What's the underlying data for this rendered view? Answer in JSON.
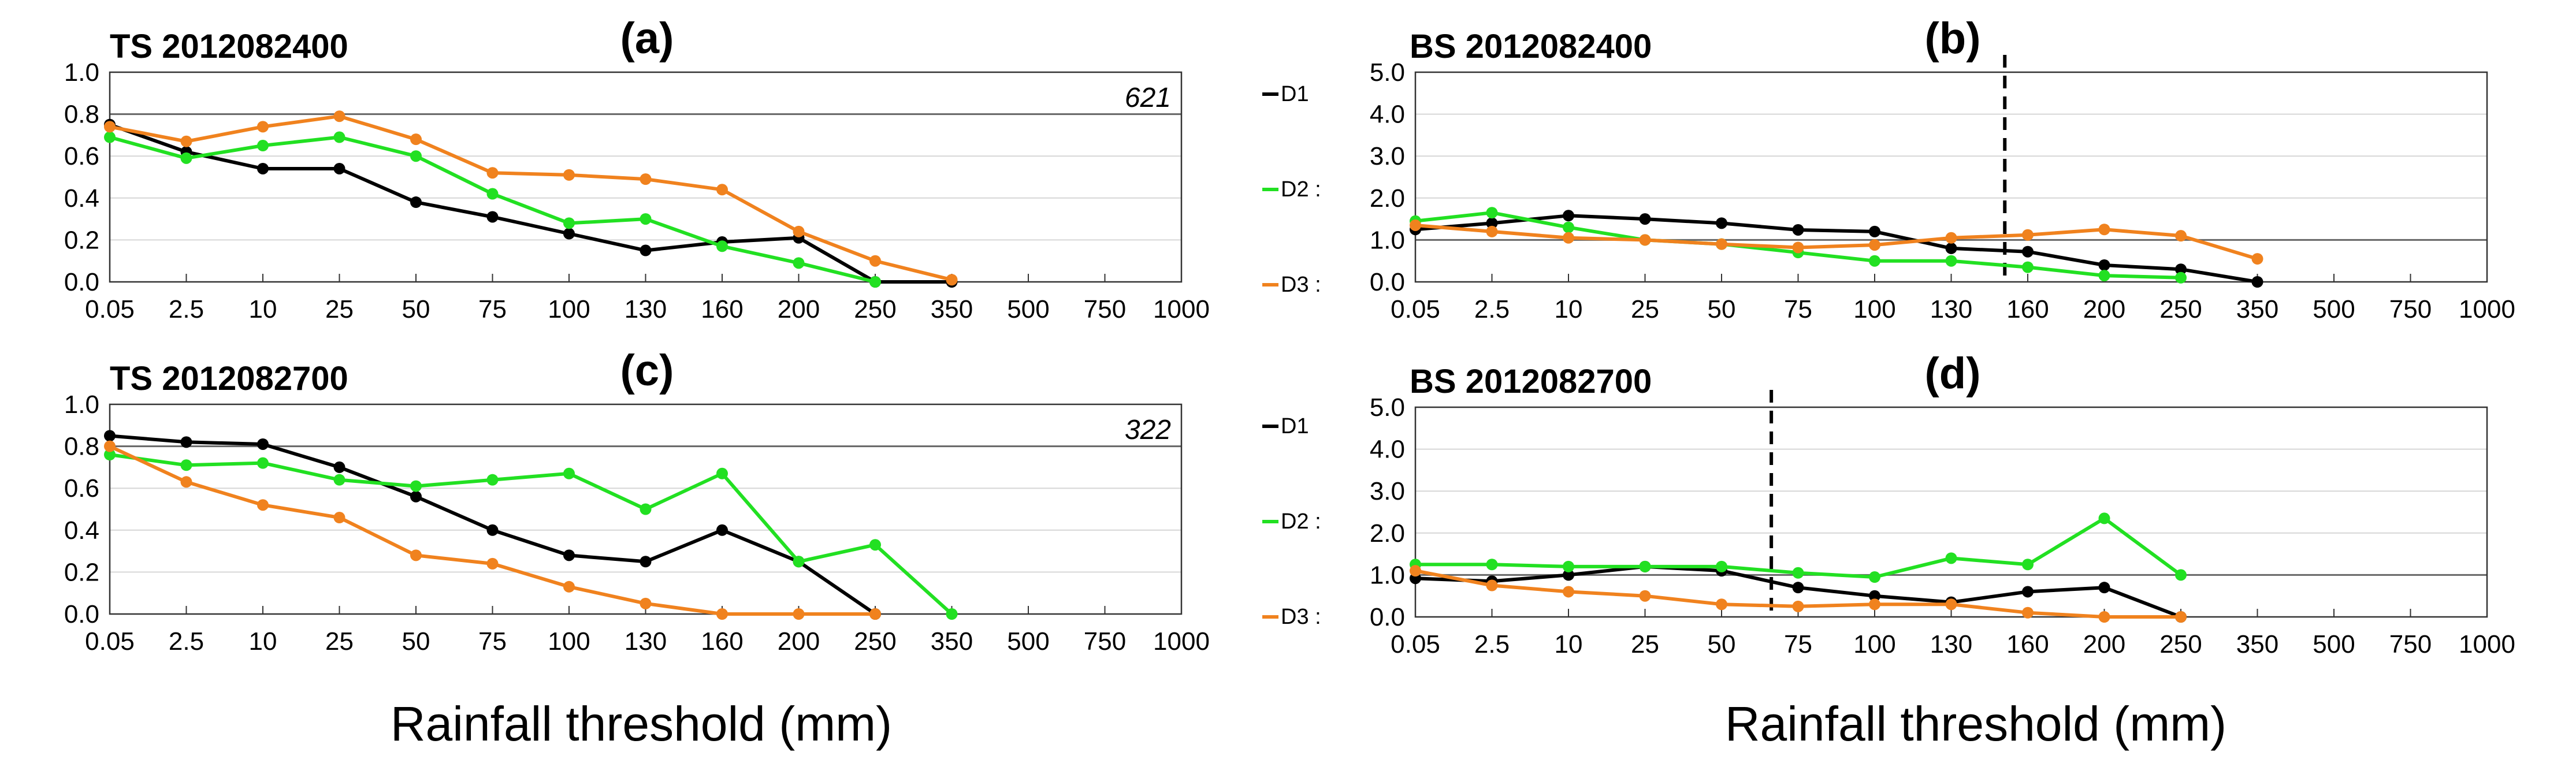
{
  "chart_data": {
    "type": "line",
    "xlabel": "Rainfall threshold  (mm)",
    "categories": [
      "0.05",
      "2.5",
      "10",
      "25",
      "50",
      "75",
      "100",
      "130",
      "160",
      "200",
      "250",
      "350",
      "500",
      "750",
      "1000"
    ],
    "colors": {
      "D1": "#000000",
      "D2": "#22e022",
      "D3": "#f0821e"
    },
    "panels": [
      {
        "id": "a",
        "letter": "(a)",
        "title": "TS 2012082400",
        "count": "621",
        "yticks": [
          "0.0",
          "0.2",
          "0.4",
          "0.6",
          "0.8",
          "1.0"
        ],
        "ylim": [
          0,
          1
        ],
        "refline": 0.8,
        "dashed_x_index": null,
        "legend": [
          "D1",
          "D2 :",
          "D3 :"
        ],
        "series": [
          {
            "name": "D1",
            "values": [
              0.75,
              0.62,
              0.54,
              0.54,
              0.38,
              0.31,
              0.23,
              0.15,
              0.19,
              0.21,
              0.0,
              0.0
            ]
          },
          {
            "name": "D2",
            "values": [
              0.69,
              0.59,
              0.65,
              0.69,
              0.6,
              0.42,
              0.28,
              0.3,
              0.17,
              0.09,
              0.0
            ]
          },
          {
            "name": "D3",
            "values": [
              0.74,
              0.67,
              0.74,
              0.79,
              0.68,
              0.52,
              0.51,
              0.49,
              0.44,
              0.24,
              0.1,
              0.01
            ]
          }
        ]
      },
      {
        "id": "b",
        "letter": "(b)",
        "title": "BS 2012082400",
        "count": "",
        "yticks": [
          "0.0",
          "1.0",
          "2.0",
          "3.0",
          "4.0",
          "5.0"
        ],
        "ylim": [
          0,
          5
        ],
        "refline": 1.0,
        "dashed_x_index": 7.7,
        "legend": [],
        "series": [
          {
            "name": "D1",
            "values": [
              1.25,
              1.4,
              1.58,
              1.5,
              1.4,
              1.24,
              1.2,
              0.8,
              0.72,
              0.4,
              0.3,
              0.0
            ]
          },
          {
            "name": "D2",
            "values": [
              1.45,
              1.65,
              1.3,
              1.0,
              0.9,
              0.7,
              0.5,
              0.5,
              0.35,
              0.15,
              0.1
            ]
          },
          {
            "name": "D3",
            "values": [
              1.35,
              1.2,
              1.05,
              1.0,
              0.9,
              0.82,
              0.88,
              1.05,
              1.12,
              1.25,
              1.1,
              0.55
            ]
          }
        ]
      },
      {
        "id": "c",
        "letter": "(c)",
        "title": "TS 2012082700",
        "count": "322",
        "yticks": [
          "0.0",
          "0.2",
          "0.4",
          "0.6",
          "0.8",
          "1.0"
        ],
        "ylim": [
          0,
          1
        ],
        "refline": 0.8,
        "dashed_x_index": null,
        "legend": [
          "D1",
          "D2 :",
          "D3 :"
        ],
        "series": [
          {
            "name": "D1",
            "values": [
              0.85,
              0.82,
              0.81,
              0.7,
              0.56,
              0.4,
              0.28,
              0.25,
              0.4,
              0.25,
              0.0
            ]
          },
          {
            "name": "D2",
            "values": [
              0.76,
              0.71,
              0.72,
              0.64,
              0.61,
              0.64,
              0.67,
              0.5,
              0.67,
              0.25,
              0.33,
              0.0
            ]
          },
          {
            "name": "D3",
            "values": [
              0.8,
              0.63,
              0.52,
              0.46,
              0.28,
              0.24,
              0.13,
              0.05,
              0.0,
              0.0,
              0.0
            ]
          }
        ]
      },
      {
        "id": "d",
        "letter": "(d)",
        "title": "BS 2012082700",
        "count": "",
        "yticks": [
          "0.0",
          "1.0",
          "2.0",
          "3.0",
          "4.0",
          "5.0"
        ],
        "ylim": [
          0,
          5
        ],
        "refline": 1.0,
        "dashed_x_index": 4.65,
        "legend": [],
        "series": [
          {
            "name": "D1",
            "values": [
              0.92,
              0.85,
              1.0,
              1.2,
              1.1,
              0.7,
              0.5,
              0.35,
              0.6,
              0.7,
              0.0
            ]
          },
          {
            "name": "D2",
            "values": [
              1.25,
              1.25,
              1.2,
              1.2,
              1.2,
              1.05,
              0.95,
              1.4,
              1.25,
              2.35,
              1.0
            ]
          },
          {
            "name": "D3",
            "values": [
              1.1,
              0.75,
              0.6,
              0.5,
              0.3,
              0.25,
              0.3,
              0.3,
              0.1,
              0.0,
              0.0
            ]
          }
        ]
      }
    ]
  }
}
